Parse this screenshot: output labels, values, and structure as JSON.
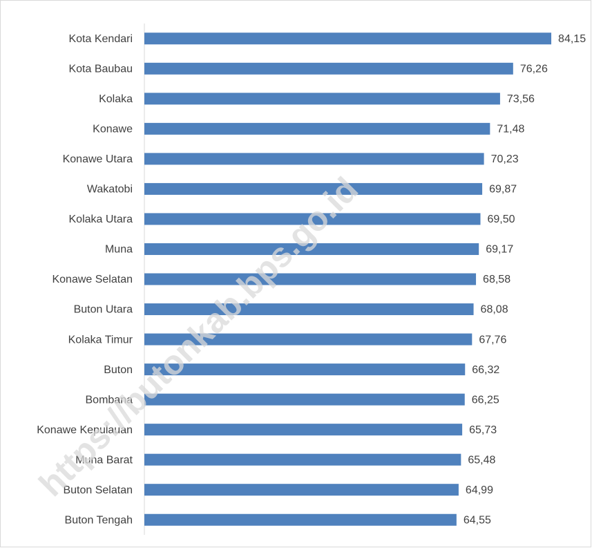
{
  "chart_data": {
    "type": "hbar",
    "categories": [
      "Kota Kendari",
      "Kota Baubau",
      "Kolaka",
      "Konawe",
      "Konawe Utara",
      "Wakatobi",
      "Kolaka Utara",
      "Muna",
      "Konawe Selatan",
      "Buton Utara",
      "Kolaka Timur",
      "Buton",
      "Bombana",
      "Konawe Kepulauan",
      "Muna Barat",
      "Buton Selatan",
      "Buton Tengah"
    ],
    "values": [
      84.15,
      76.26,
      73.56,
      71.48,
      70.23,
      69.87,
      69.5,
      69.17,
      68.58,
      68.08,
      67.76,
      66.32,
      66.25,
      65.73,
      65.48,
      64.99,
      64.55
    ],
    "value_labels": [
      "84,15",
      "76,26",
      "73,56",
      "71,48",
      "70,23",
      "69,87",
      "69,50",
      "69,17",
      "68,58",
      "68,08",
      "67,76",
      "66,32",
      "66,25",
      "65,73",
      "65,48",
      "64,99",
      "64,55"
    ],
    "color": "#4f81bd",
    "xlim": [
      0,
      90
    ],
    "watermark": "https://butonkab.bps.go.id"
  }
}
